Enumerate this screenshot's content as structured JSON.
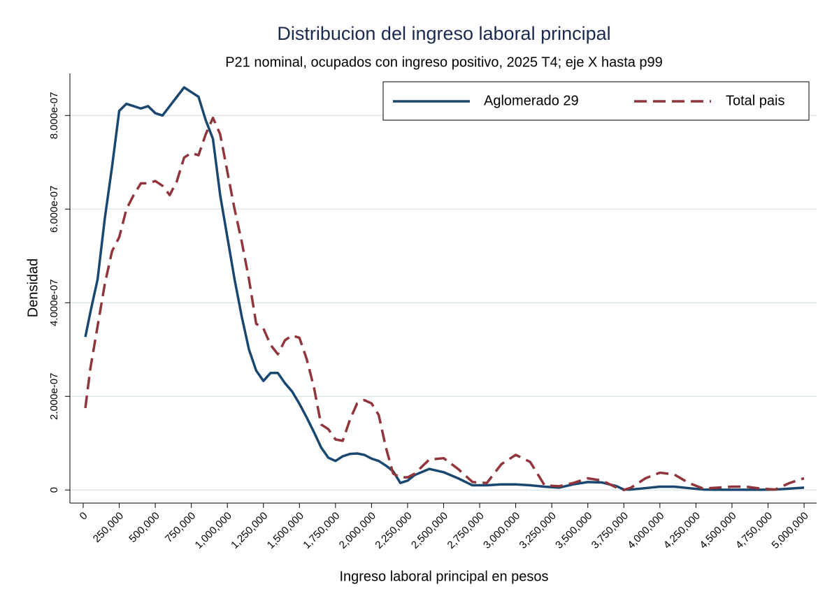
{
  "chart_data": {
    "type": "line",
    "title": "Distribucion del ingreso laboral principal",
    "subtitle": "P21 nominal, ocupados con ingreso positivo, 2025 T4; eje X hasta p99",
    "x_label": "Ingreso laboral principal en pesos",
    "y_label": "Densidad",
    "x": [
      15000,
      50000,
      100000,
      150000,
      200000,
      250000,
      300000,
      350000,
      400000,
      450000,
      500000,
      550000,
      600000,
      650000,
      700000,
      750000,
      800000,
      850000,
      900000,
      950000,
      1000000,
      1050000,
      1100000,
      1150000,
      1200000,
      1250000,
      1300000,
      1350000,
      1400000,
      1450000,
      1500000,
      1550000,
      1600000,
      1650000,
      1700000,
      1750000,
      1800000,
      1850000,
      1900000,
      1950000,
      2000000,
      2050000,
      2100000,
      2150000,
      2200000,
      2250000,
      2300000,
      2400000,
      2500000,
      2600000,
      2700000,
      2800000,
      2900000,
      3000000,
      3100000,
      3200000,
      3300000,
      3400000,
      3500000,
      3600000,
      3700000,
      3750000,
      3800000,
      3900000,
      4000000,
      4100000,
      4200000,
      4300000,
      4400000,
      4500000,
      4600000,
      4700000,
      4800000,
      4900000,
      5000000
    ],
    "series": [
      {
        "name": "Aglomerado 29",
        "color": "#1a476f",
        "dash": false,
        "values": [
          3.27e-07,
          3.8e-07,
          4.5e-07,
          5.8e-07,
          6.9e-07,
          8.1e-07,
          8.25e-07,
          8.2e-07,
          8.15e-07,
          8.2e-07,
          8.05e-07,
          8e-07,
          8.2e-07,
          8.4e-07,
          8.6e-07,
          8.5e-07,
          8.4e-07,
          7.9e-07,
          7.5e-07,
          6.3e-07,
          5.4e-07,
          4.5e-07,
          3.7e-07,
          3e-07,
          2.55e-07,
          2.33e-07,
          2.5e-07,
          2.5e-07,
          2.28e-07,
          2.1e-07,
          1.84e-07,
          1.55e-07,
          1.24e-07,
          9.1e-08,
          6.9e-08,
          6.2e-08,
          7.2e-08,
          7.7e-08,
          7.8e-08,
          7.5e-08,
          6.7e-08,
          6.2e-08,
          5.2e-08,
          4e-08,
          1.5e-08,
          2e-08,
          3.2e-08,
          4.5e-08,
          3.8e-08,
          2.5e-08,
          1e-08,
          1e-08,
          1.2e-08,
          1.2e-08,
          1e-08,
          7e-09,
          5e-09,
          1.2e-08,
          1.7e-08,
          1.6e-08,
          8e-09,
          1e-09,
          1e-09,
          4e-09,
          7e-09,
          7e-09,
          4e-09,
          1e-09,
          5e-10,
          5e-10,
          5e-10,
          5e-10,
          1e-09,
          3e-09,
          5e-09
        ]
      },
      {
        "name": "Total pais",
        "color": "#90353b",
        "dash": true,
        "values": [
          1.75e-07,
          2.6e-07,
          3.5e-07,
          4.4e-07,
          5.1e-07,
          5.4e-07,
          6e-07,
          6.3e-07,
          6.55e-07,
          6.55e-07,
          6.6e-07,
          6.5e-07,
          6.3e-07,
          6.6e-07,
          7.1e-07,
          7.2e-07,
          7.15e-07,
          7.6e-07,
          7.95e-07,
          7.6e-07,
          6.8e-07,
          6e-07,
          5.3e-07,
          4.5e-07,
          3.55e-07,
          3.45e-07,
          3.1e-07,
          2.9e-07,
          3.2e-07,
          3.3e-07,
          3.25e-07,
          2.8e-07,
          2.2e-07,
          1.4e-07,
          1.3e-07,
          1.08e-07,
          1.05e-07,
          1.5e-07,
          1.85e-07,
          1.92e-07,
          1.85e-07,
          1.6e-07,
          9e-08,
          3.5e-08,
          2.7e-08,
          2.7e-08,
          3.5e-08,
          6.5e-08,
          6.8e-08,
          4.5e-08,
          1.7e-08,
          1.5e-08,
          5.5e-08,
          7.5e-08,
          6e-08,
          1e-08,
          8e-09,
          1.5e-08,
          2.5e-08,
          2e-08,
          5e-09,
          0,
          5e-09,
          2.5e-08,
          3.7e-08,
          3.3e-08,
          1.5e-08,
          3e-09,
          5e-09,
          7e-09,
          7e-09,
          3e-09,
          1e-09,
          1.5e-08,
          2.5e-08
        ]
      }
    ],
    "xlim": [
      -92000,
      5087000
    ],
    "ylim": [
      -2.8e-08,
      8.9e-07
    ],
    "xticks": [
      0,
      {
        "value": 250000,
        "label": "250,000"
      },
      {
        "value": 500000,
        "label": "500,000"
      },
      {
        "value": 750000,
        "label": "750,000"
      },
      {
        "value": 1000000,
        "label": "1,000,000"
      },
      {
        "value": 1250000,
        "label": "1,250,000"
      },
      {
        "value": 1500000,
        "label": "1,500,000"
      },
      {
        "value": 1750000,
        "label": "1,750,000"
      },
      {
        "value": 2000000,
        "label": "2,000,000"
      },
      {
        "value": 2250000,
        "label": "2,250,000"
      },
      {
        "value": 2500000,
        "label": "2,500,000"
      },
      {
        "value": 2750000,
        "label": "2,750,000"
      },
      {
        "value": 3000000,
        "label": "3,000,000"
      },
      {
        "value": 3250000,
        "label": "3,250,000"
      },
      {
        "value": 3500000,
        "label": "3,500,000"
      },
      {
        "value": 3750000,
        "label": "3,750,000"
      },
      {
        "value": 4000000,
        "label": "4,000,000"
      },
      {
        "value": 4250000,
        "label": "4,250,000"
      },
      {
        "value": 4500000,
        "label": "4,500,000"
      },
      {
        "value": 4750000,
        "label": "4,750,000"
      },
      {
        "value": 5000000,
        "label": "5,000,000"
      }
    ],
    "yticks": [
      0,
      {
        "value": 2e-07,
        "label": "2.000e-07"
      },
      {
        "value": 4e-07,
        "label": "4.000e-07"
      },
      {
        "value": 6e-07,
        "label": "6.000e-07"
      },
      {
        "value": 8e-07,
        "label": "8.000e-07"
      }
    ],
    "grid": true,
    "legend": "top-right"
  }
}
